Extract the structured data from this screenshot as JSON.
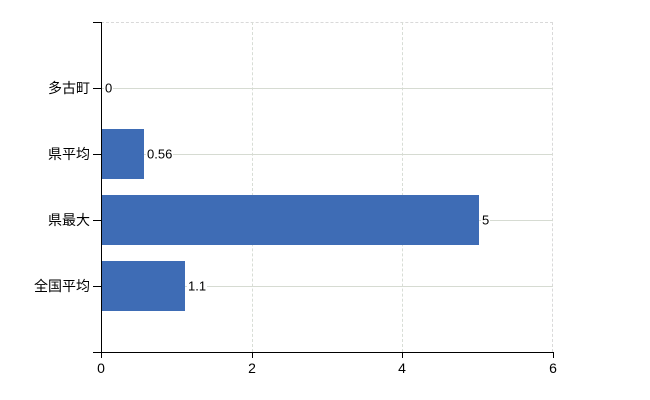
{
  "chart_data": {
    "type": "bar",
    "orientation": "horizontal",
    "title": "",
    "xlabel": "",
    "ylabel": "",
    "categories": [
      "多古町",
      "県平均",
      "県最大",
      "全国平均"
    ],
    "values": [
      0,
      0.56,
      5,
      1.1
    ],
    "data_labels": [
      "0",
      "0.56",
      "5",
      "1.1"
    ],
    "xlim": [
      0,
      6
    ],
    "x_ticks": [
      0,
      2,
      4,
      6
    ],
    "x_tick_labels": [
      "0",
      "2",
      "4",
      "6"
    ],
    "grid": true,
    "legend": false,
    "colors": {
      "bar": "#3e6cb5",
      "category_gridline": "#d6dbd2",
      "value_gridline": "#d8ddd6",
      "plot_border": "#d9d9d9",
      "axis": "#000000",
      "text": "#000000",
      "background": "#ffffff"
    }
  }
}
